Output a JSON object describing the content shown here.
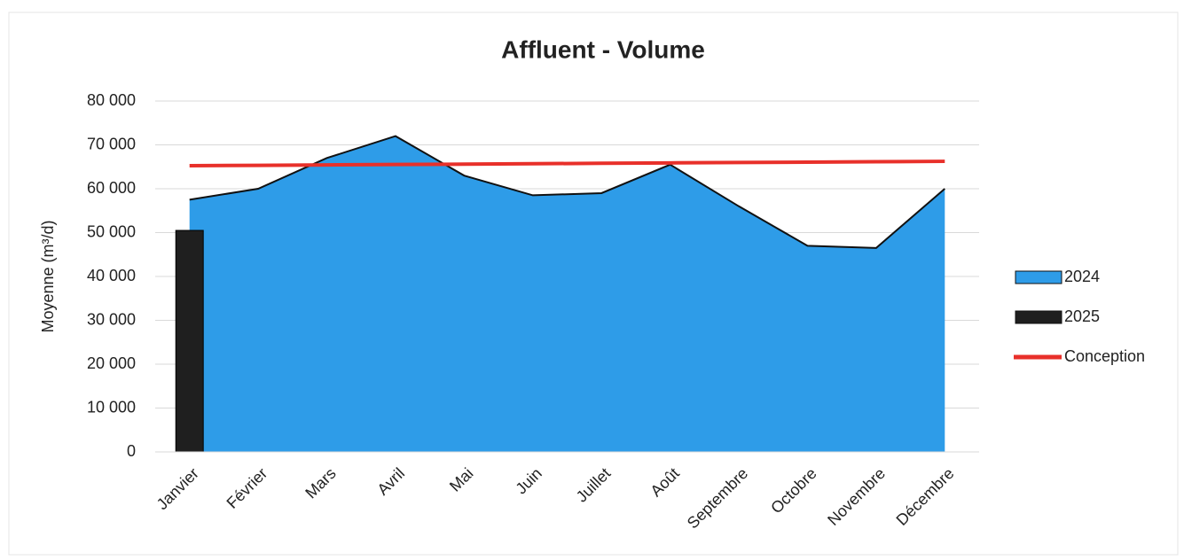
{
  "chart_data": {
    "type": "area",
    "title": "Affluent - Volume",
    "y_label": "Moyenne (m³/d)",
    "categories": [
      "Janvier",
      "Février",
      "Mars",
      "Avril",
      "Mai",
      "Juin",
      "Juillet",
      "Août",
      "Septembre",
      "Octobre",
      "Novembre",
      "Décembre"
    ],
    "series": [
      {
        "name": "2024",
        "type": "area",
        "color": "#2e9ce8",
        "values": [
          57500,
          60000,
          67000,
          72000,
          63000,
          58500,
          59000,
          65500,
          56000,
          47000,
          46500,
          60000
        ]
      },
      {
        "name": "2025",
        "type": "bar",
        "color": "#1f1f1f",
        "values": [
          50500,
          null,
          null,
          null,
          null,
          null,
          null,
          null,
          null,
          null,
          null,
          null
        ]
      },
      {
        "name": "Conception",
        "type": "line",
        "color": "#e8302a",
        "values": [
          65250,
          65340,
          65430,
          65520,
          65610,
          65700,
          65800,
          65890,
          65980,
          66070,
          66160,
          66250
        ]
      }
    ],
    "ylim": [
      0,
      80000
    ],
    "yticks": [
      0,
      {
        "value": 10000,
        "label": "10 000"
      },
      {
        "value": 20000,
        "label": "20 000"
      },
      {
        "value": 30000,
        "label": "30 000"
      },
      {
        "value": 40000,
        "label": "40 000"
      },
      {
        "value": 50000,
        "label": "50 000"
      },
      {
        "value": 60000,
        "label": "60 000"
      },
      {
        "value": 70000,
        "label": "70 000"
      },
      {
        "value": 80000,
        "label": "80 000"
      }
    ],
    "grid": true,
    "legend": "right"
  }
}
